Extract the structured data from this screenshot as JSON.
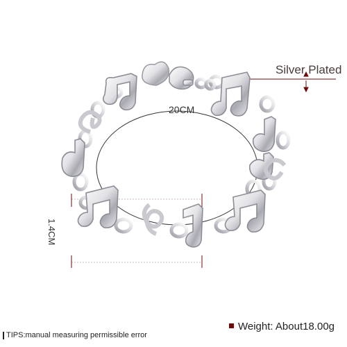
{
  "product": {
    "material_label": "Silver Plated",
    "circumference_label": "20CM",
    "width_label": "1.4CM",
    "tips_label": "TIPS:manual measuring permissible error",
    "weight_label": "Weight: About18.00g"
  },
  "colors": {
    "accent_dark_red": "#6b0a0a",
    "metal_light": "#f4f4f6",
    "metal_mid": "#c9c9cf",
    "metal_dark": "#8a8a93",
    "guide_line": "#c8b8b8"
  },
  "icons": [
    "treble-clef-icon",
    "music-note-icon",
    "lobster-clasp-icon",
    "heart-tag-icon"
  ]
}
